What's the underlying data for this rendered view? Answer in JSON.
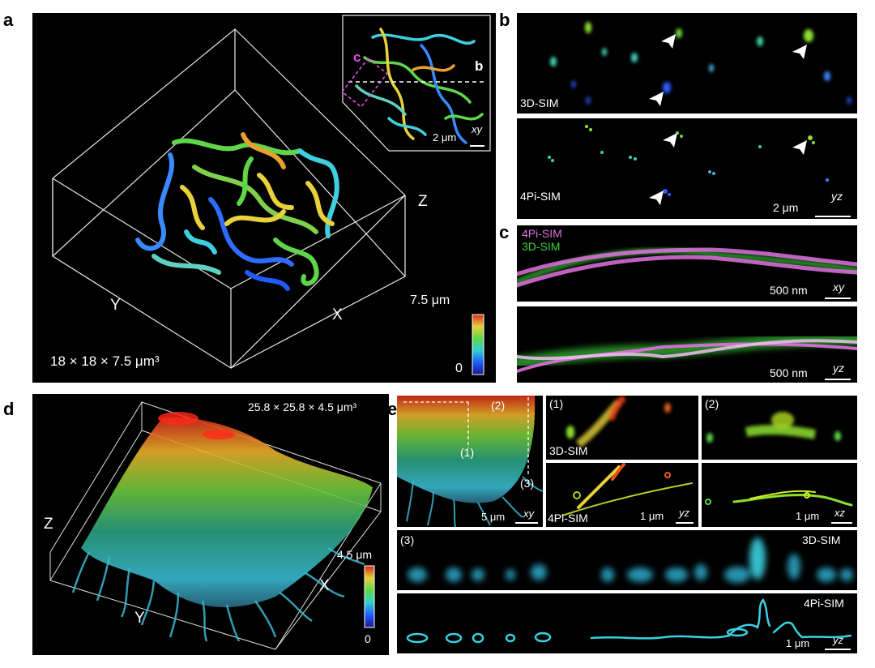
{
  "panel_letters": {
    "a": "a",
    "b": "b",
    "c": "c",
    "d": "d",
    "e": "e"
  },
  "panel_a": {
    "volume": "18 × 18 × 7.5 μm³",
    "axis_x": "X",
    "axis_y": "Y",
    "axis_z": "Z",
    "colorbar_max": "7.5 μm",
    "colorbar_min": "0",
    "inset_scale": "2 μm",
    "inset_plane": "xy",
    "inset_marker_c": "c",
    "inset_marker_b": "b",
    "colors": {
      "blue": "#1f5bff",
      "cyan": "#3fd0e0",
      "green": "#5fd64a",
      "yellow": "#e8d13a",
      "orange": "#e8802a",
      "red": "#d62a1a"
    }
  },
  "panel_b": {
    "top_label": "3D-SIM",
    "bottom_label": "4Pi-SIM",
    "scale": "2 μm",
    "plane": "yz"
  },
  "panel_c": {
    "legend_4pi": "4Pi-SIM",
    "legend_3d": "3D-SIM",
    "top_scale": "500 nm",
    "top_plane": "xy",
    "bottom_scale": "500 nm",
    "bottom_plane": "yz",
    "color_4pi": "#e070e0",
    "color_3d": "#3cd23c"
  },
  "panel_d": {
    "volume": "25.8 × 25.8 × 4.5 μm³",
    "axis_x": "X",
    "axis_y": "Y",
    "axis_z": "Z",
    "colorbar_max": "4.5 μm",
    "colorbar_min": "0"
  },
  "panel_e": {
    "main_scale": "5 μm",
    "main_plane": "xy",
    "marker1": "(1)",
    "marker2": "(2)",
    "marker3": "(3)",
    "sub1_label": "(1)",
    "sub1_top": "3D-SIM",
    "sub1_bottom": "4Pi-SIM",
    "sub1_scale": "1 μm",
    "sub1_plane": "yz",
    "sub2_label": "(2)",
    "sub2_scale": "1 μm",
    "sub2_plane": "xz",
    "sub3_label": "(3)",
    "sub3_top": "3D-SIM",
    "sub3_bottom": "4Pi-SIM",
    "sub3_scale": "1 μm",
    "sub3_plane": "yz"
  }
}
